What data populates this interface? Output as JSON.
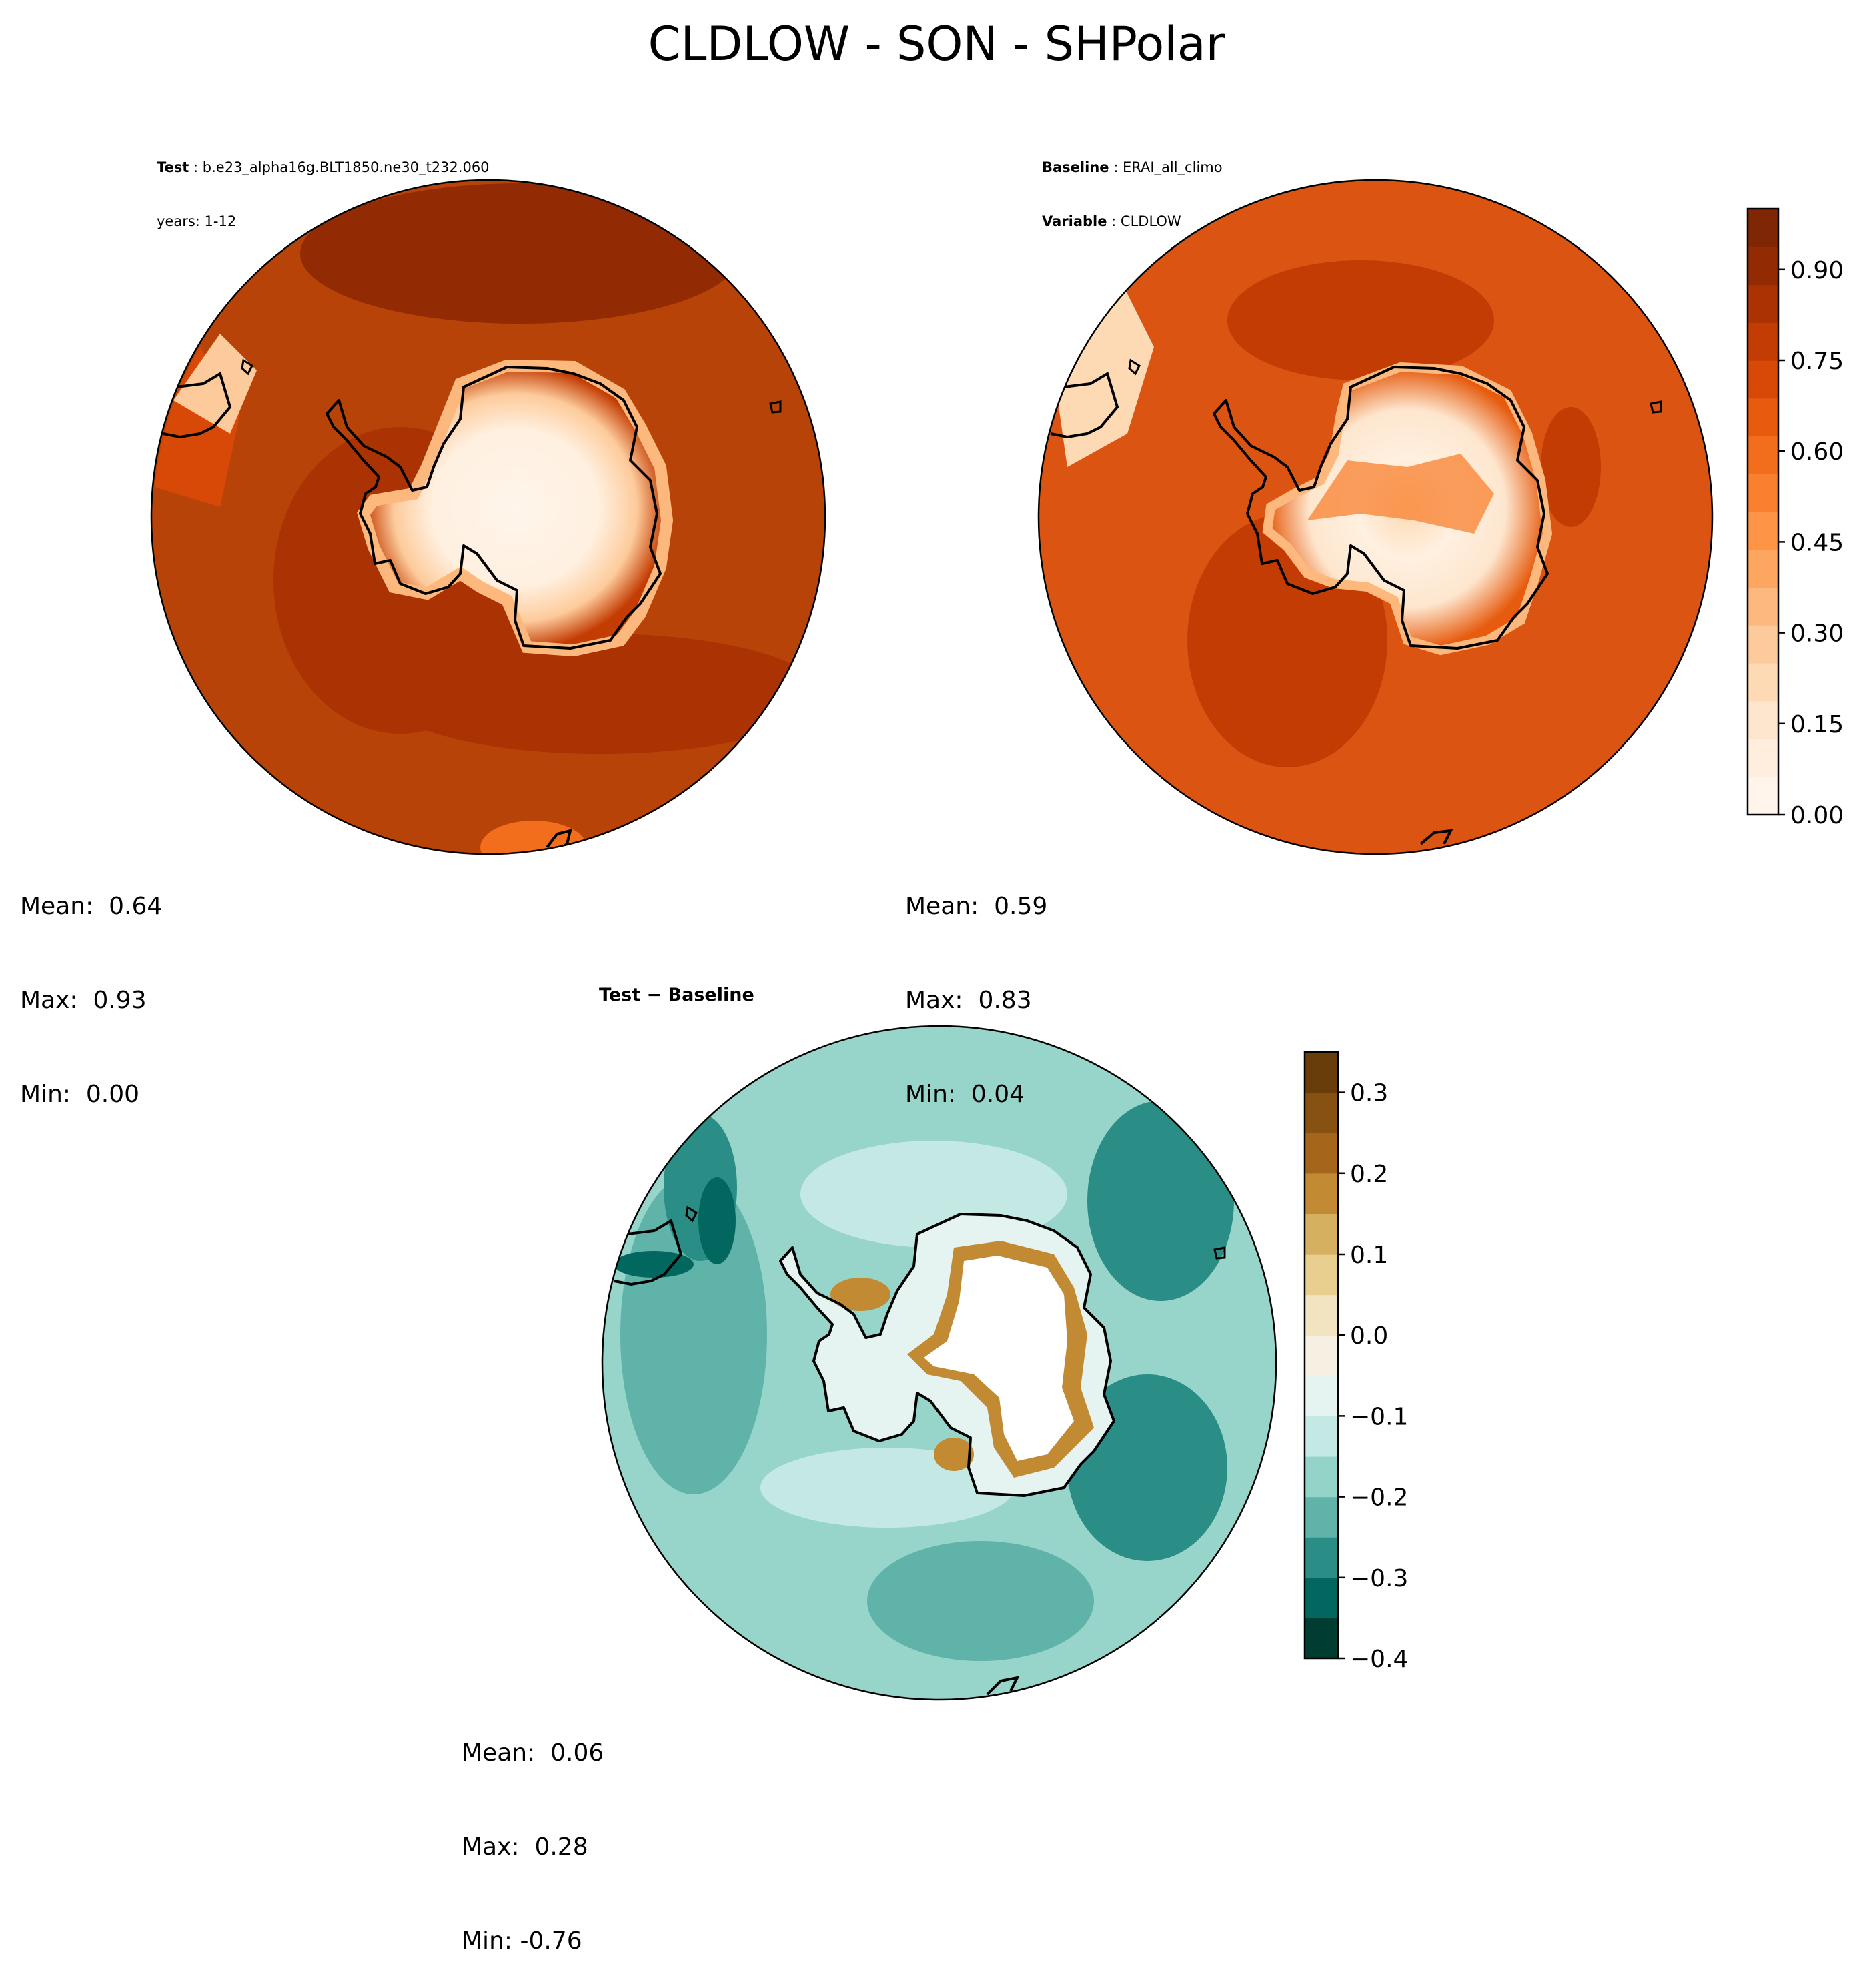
{
  "page_title": "CLDLOW - SON - SHPolar",
  "test_panel": {
    "label_key": "Test",
    "name": "b.e23_alpha16g.BLT1850.ne30_t232.060",
    "years_line": "years: 1-12",
    "mean": "Mean:  0.64",
    "max": "Max:  0.93",
    "min": "Min:  0.00"
  },
  "baseline_panel": {
    "label_key": "Baseline",
    "name": "ERAI_all_climo",
    "variable_key": "Variable",
    "variable": "CLDLOW",
    "mean": "Mean:  0.59",
    "max": "Max:  0.83",
    "min": "Min:  0.04"
  },
  "diff_panel": {
    "title": "Test − Baseline",
    "mean": "Mean:  0.06",
    "max": "Max:  0.28",
    "min": "Min: -0.76"
  },
  "colors": {
    "ocean_test": "#b84308",
    "ocean_baseline": "#dc5412",
    "diff_base": "#97d4c9",
    "coast": "#000000"
  },
  "chart_data": [
    {
      "type": "heatmap",
      "name": "Test",
      "projection": "South Polar Stereographic",
      "variable": "CLDLOW",
      "colormap": "Oranges",
      "levels": [
        0.0,
        0.05,
        0.1,
        0.15,
        0.2,
        0.25,
        0.3,
        0.35,
        0.4,
        0.45,
        0.5,
        0.55,
        0.6,
        0.65,
        0.7,
        0.75,
        0.8,
        0.85,
        0.9,
        0.95,
        1.0
      ],
      "stats": {
        "mean": 0.64,
        "max": 0.93,
        "min": 0.0
      }
    },
    {
      "type": "heatmap",
      "name": "Baseline",
      "projection": "South Polar Stereographic",
      "variable": "CLDLOW",
      "colormap": "Oranges",
      "colorbar": {
        "ticks": [
          "0.00",
          "0.15",
          "0.30",
          "0.45",
          "0.60",
          "0.75",
          "0.90"
        ],
        "range": [
          0.0,
          1.0
        ],
        "colors": [
          "#fff5eb",
          "#ffeedd",
          "#fee6ce",
          "#fdd9b4",
          "#fdcb9b",
          "#fdb97d",
          "#fda660",
          "#fd9446",
          "#f8802f",
          "#f26d1c",
          "#e65b0e",
          "#d84908",
          "#c33c03",
          "#aa3203",
          "#922a03",
          "#7f2704"
        ]
      },
      "stats": {
        "mean": 0.59,
        "max": 0.83,
        "min": 0.04
      }
    },
    {
      "type": "heatmap",
      "name": "Test - Baseline",
      "projection": "South Polar Stereographic",
      "variable": "CLDLOW difference",
      "colormap": "BrBG",
      "colorbar": {
        "ticks": [
          "0.3",
          "0.2",
          "0.1",
          "0.0",
          "−0.1",
          "−0.2",
          "−0.3",
          "−0.4"
        ],
        "range": [
          -0.4,
          0.35
        ],
        "colors": [
          "#003c30",
          "#02685f",
          "#2a8e86",
          "#5fb3a9",
          "#93d3c8",
          "#c4e9e4",
          "#e5f4f1",
          "#f5f0e2",
          "#f2e4c0",
          "#e8cf8f",
          "#d5b060",
          "#c28a33",
          "#a5651b",
          "#875111",
          "#683d0a"
        ]
      },
      "stats": {
        "mean": 0.06,
        "max": 0.28,
        "min": -0.76
      }
    }
  ]
}
